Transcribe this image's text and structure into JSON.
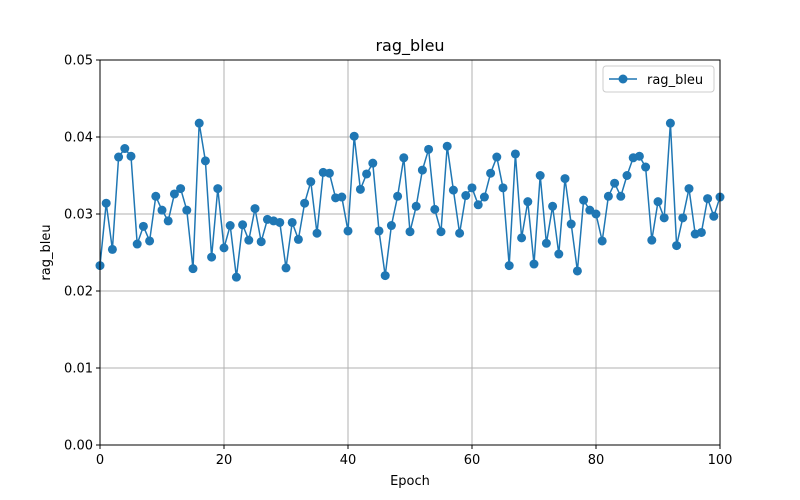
{
  "chart_data": {
    "type": "line",
    "title": "rag_bleu",
    "xlabel": "Epoch",
    "ylabel": "rag_bleu",
    "xlim": [
      0,
      100
    ],
    "ylim": [
      0,
      0.05
    ],
    "xticks": [
      0,
      20,
      40,
      60,
      80,
      100
    ],
    "xtick_labels": [
      "0",
      "20",
      "40",
      "60",
      "80",
      "100"
    ],
    "yticks": [
      0,
      0.01,
      0.02,
      0.03,
      0.04,
      0.05
    ],
    "ytick_labels": [
      "0.00",
      "0.01",
      "0.02",
      "0.03",
      "0.04",
      "0.05"
    ],
    "grid": true,
    "legend_position": "top-right",
    "marker": "circle",
    "series": [
      {
        "name": "rag_bleu",
        "color": "#1f77b4",
        "x": [
          0,
          1,
          2,
          3,
          4,
          5,
          6,
          7,
          8,
          9,
          10,
          11,
          12,
          13,
          14,
          15,
          16,
          17,
          18,
          19,
          20,
          21,
          22,
          23,
          24,
          25,
          26,
          27,
          28,
          29,
          30,
          31,
          32,
          33,
          34,
          35,
          36,
          37,
          38,
          39,
          40,
          41,
          42,
          43,
          44,
          45,
          46,
          47,
          48,
          49,
          50,
          51,
          52,
          53,
          54,
          55,
          56,
          57,
          58,
          59,
          60,
          61,
          62,
          63,
          64,
          65,
          66,
          67,
          68,
          69,
          70,
          71,
          72,
          73,
          74,
          75,
          76,
          77,
          78,
          79,
          80,
          81,
          82,
          83,
          84,
          85,
          86,
          87,
          88,
          89,
          90,
          91,
          92,
          93,
          94,
          95,
          96,
          97,
          98,
          99,
          100
        ],
        "values": [
          0.0233,
          0.0314,
          0.0254,
          0.0374,
          0.0385,
          0.0375,
          0.0261,
          0.0284,
          0.0265,
          0.0323,
          0.0305,
          0.0291,
          0.0326,
          0.0333,
          0.0305,
          0.0229,
          0.0418,
          0.0369,
          0.0244,
          0.0333,
          0.0256,
          0.0285,
          0.0218,
          0.0286,
          0.0266,
          0.0307,
          0.0264,
          0.0293,
          0.0291,
          0.0289,
          0.023,
          0.0289,
          0.0267,
          0.0314,
          0.0342,
          0.0275,
          0.0354,
          0.0353,
          0.0321,
          0.0322,
          0.0278,
          0.0401,
          0.0332,
          0.0352,
          0.0366,
          0.0278,
          0.022,
          0.0285,
          0.0323,
          0.0373,
          0.0277,
          0.031,
          0.0357,
          0.0384,
          0.0306,
          0.0277,
          0.0388,
          0.0331,
          0.0275,
          0.0324,
          0.0334,
          0.0312,
          0.0322,
          0.0353,
          0.0374,
          0.0334,
          0.0233,
          0.0378,
          0.0269,
          0.0316,
          0.0235,
          0.035,
          0.0262,
          0.031,
          0.0248,
          0.0346,
          0.0287,
          0.0226,
          0.0318,
          0.0305,
          0.03,
          0.0265,
          0.0323,
          0.034,
          0.0323,
          0.035,
          0.0373,
          0.0375,
          0.0361,
          0.0266,
          0.0316,
          0.0295,
          0.0418,
          0.0259,
          0.0295,
          0.0333,
          0.0274,
          0.0276,
          0.032,
          0.0297,
          0.0322
        ]
      }
    ]
  }
}
